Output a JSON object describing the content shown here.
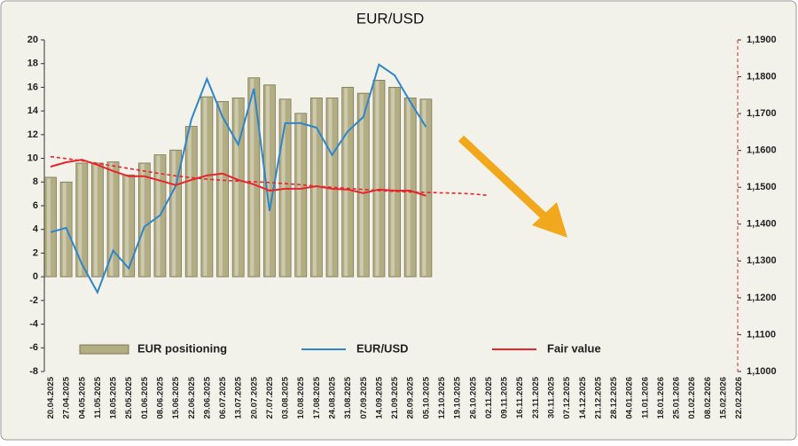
{
  "chart_data": {
    "type": "bar",
    "title": "EUR/USD",
    "categories": [
      "20.04.2025",
      "27.04.2025",
      "04.05.2025",
      "11.05.2025",
      "18.05.2025",
      "25.05.2025",
      "01.06.2025",
      "08.06.2025",
      "15.06.2025",
      "22.06.2025",
      "29.06.2025",
      "06.07.2025",
      "13.07.2025",
      "20.07.2025",
      "27.07.2025",
      "03.08.2025",
      "10.08.2025",
      "17.08.2025",
      "24.08.2025",
      "31.08.2025",
      "07.09.2025",
      "14.09.2025",
      "21.09.2025",
      "28.09.2025",
      "05.10.2025",
      "12.10.2025",
      "19.10.2025",
      "26.10.2025",
      "02.11.2025",
      "09.11.2025",
      "16.11.2025",
      "23.11.2025",
      "30.11.2025",
      "07.12.2025",
      "14.12.2025",
      "21.12.2025",
      "28.12.2025",
      "04.01.2026",
      "11.01.2026",
      "18.01.2026",
      "25.01.2026",
      "01.02.2026",
      "08.02.2026",
      "15.02.2026",
      "22.02.2026"
    ],
    "series": [
      {
        "name": "EUR positioning",
        "type": "bar",
        "color": "#b3ad83",
        "values": [
          8.4,
          8.0,
          9.6,
          9.6,
          9.7,
          8.6,
          9.6,
          10.3,
          10.7,
          12.7,
          15.2,
          14.8,
          15.1,
          16.8,
          16.2,
          15.0,
          13.8,
          15.1,
          15.1,
          16.0,
          15.5,
          16.6,
          16.0,
          15.1,
          15.0,
          null,
          null,
          null,
          null,
          null,
          null,
          null,
          null,
          null,
          null,
          null,
          null,
          null,
          null,
          null,
          null,
          null,
          null,
          null,
          null
        ]
      },
      {
        "name": "EUR/USD",
        "type": "line",
        "axis": "y2",
        "color": "#2e86c8",
        "values": [
          1.1378,
          1.139,
          1.1292,
          1.1215,
          1.1328,
          1.128,
          1.1393,
          1.1424,
          1.1503,
          1.1684,
          1.1794,
          1.1691,
          1.1616,
          1.1768,
          1.1436,
          1.1674,
          1.1674,
          1.1662,
          1.1588,
          1.1652,
          1.1691,
          1.1833,
          1.1804,
          1.1732,
          1.1664,
          null,
          null,
          null,
          null,
          null,
          null,
          null,
          null,
          null,
          null,
          null,
          null,
          null,
          null,
          null,
          null,
          null,
          null,
          null,
          null
        ]
      },
      {
        "name": "Fair value",
        "type": "line",
        "axis": "y2",
        "color": "#e8252b",
        "values": [
          1.1556,
          1.1568,
          1.1575,
          1.1561,
          1.1544,
          1.153,
          1.153,
          1.1518,
          1.1506,
          1.152,
          1.1532,
          1.1537,
          1.152,
          1.1508,
          1.1491,
          1.1496,
          1.1496,
          1.1503,
          1.1496,
          1.1494,
          1.1484,
          1.1494,
          1.1491,
          1.1491,
          1.1477,
          null,
          null,
          null,
          null,
          null,
          null,
          null,
          null,
          null,
          null,
          null,
          null,
          null,
          null,
          null,
          null,
          null,
          null,
          null,
          null
        ]
      },
      {
        "type": "line",
        "axis": "y2",
        "color": "#e8252b",
        "dashed": true,
        "values": [
          1.1583,
          1.1578,
          1.1572,
          1.1565,
          1.1558,
          1.1551,
          1.1544,
          1.1537,
          1.1531,
          1.1526,
          1.1522,
          1.1519,
          1.1517,
          1.1515,
          1.1513,
          1.151,
          1.1507,
          1.1503,
          1.15,
          1.1497,
          1.1494,
          1.1491,
          1.1489,
          1.1487,
          1.1486,
          1.1485,
          1.1484,
          1.1482,
          1.1478,
          null,
          null,
          null,
          null,
          null,
          null,
          null,
          null,
          null,
          null,
          null,
          null,
          null,
          null,
          null,
          null
        ]
      }
    ],
    "ylim": [
      -8,
      20
    ],
    "yticks": [
      -8,
      -6,
      -4,
      -2,
      0,
      2,
      4,
      6,
      8,
      10,
      12,
      14,
      16,
      18,
      20
    ],
    "y2lim": [
      1.1,
      1.19
    ],
    "y2ticks": [
      {
        "value": 1.1,
        "label": "1,1000"
      },
      {
        "value": 1.11,
        "label": "1,1100"
      },
      {
        "value": 1.12,
        "label": "1,1200"
      },
      {
        "value": 1.13,
        "label": "1,1300"
      },
      {
        "value": 1.14,
        "label": "1,1400"
      },
      {
        "value": 1.15,
        "label": "1,1500"
      },
      {
        "value": 1.16,
        "label": "1,1600"
      },
      {
        "value": 1.17,
        "label": "1,1700"
      },
      {
        "value": 1.18,
        "label": "1,1800"
      },
      {
        "value": 1.19,
        "label": "1,1900"
      }
    ],
    "grid": false
  }
}
